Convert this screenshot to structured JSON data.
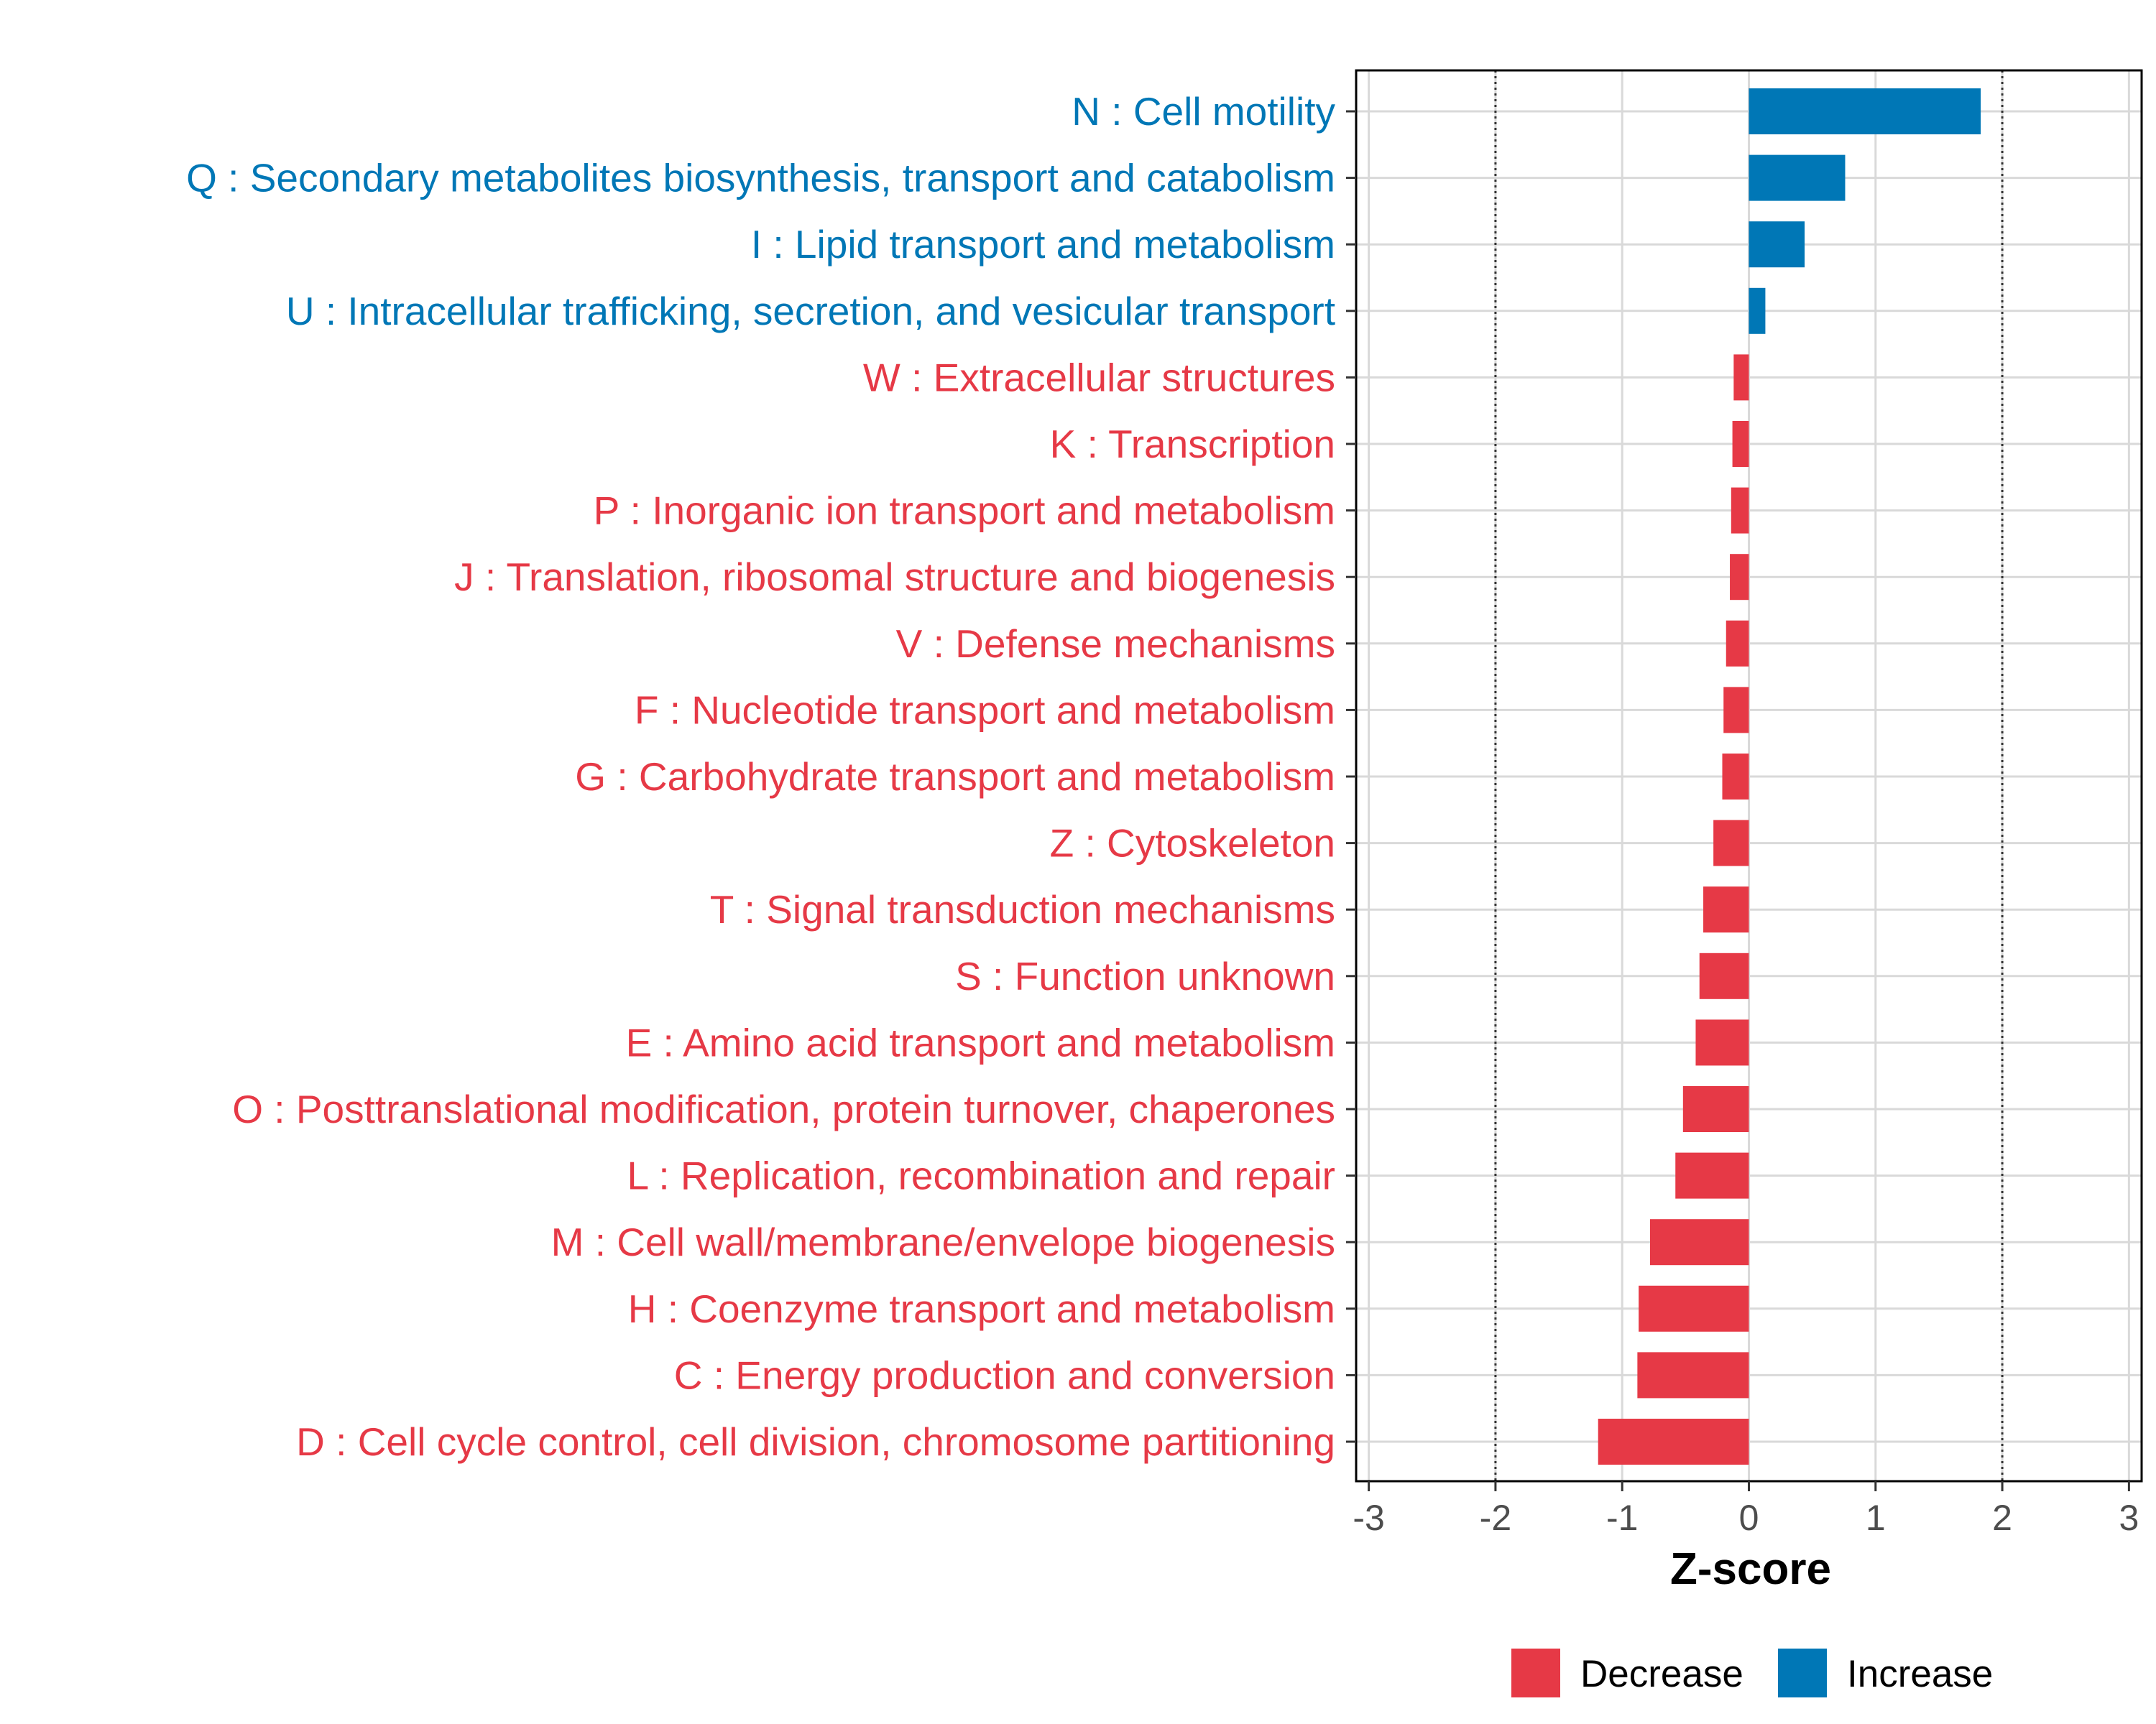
{
  "chart_data": {
    "type": "bar",
    "orientation": "horizontal",
    "xlabel": "Z-score",
    "xlim": [
      -3.1,
      3.1
    ],
    "xticks": [
      -3,
      -2,
      -1,
      0,
      1,
      2,
      3
    ],
    "reference_lines": [
      -2,
      2
    ],
    "grid": true,
    "legend_position": "bottom",
    "colors": {
      "Decrease": "#e63946",
      "Increase": "#0077b6"
    },
    "legend": [
      {
        "label": "Decrease",
        "color": "#e63946"
      },
      {
        "label": "Increase",
        "color": "#0077b6"
      }
    ],
    "categories": [
      "N : Cell motility",
      "Q : Secondary metabolites biosynthesis, transport and catabolism",
      "I : Lipid transport and metabolism",
      "U : Intracellular trafficking, secretion, and vesicular transport",
      "W : Extracellular structures",
      "K : Transcription",
      "P : Inorganic ion transport and metabolism",
      "J : Translation, ribosomal structure and biogenesis",
      "V : Defense mechanisms",
      "F : Nucleotide transport and metabolism",
      "G : Carbohydrate transport and metabolism",
      "Z : Cytoskeleton",
      "T : Signal transduction mechanisms",
      "S : Function unknown",
      "E : Amino acid transport and metabolism",
      "O : Posttranslational modification, protein turnover, chaperones",
      "L : Replication, recombination and repair",
      "M : Cell wall/membrane/envelope biogenesis",
      "H : Coenzyme transport and metabolism",
      "C : Energy production and conversion",
      "D : Cell cycle control, cell division, chromosome partitioning"
    ],
    "values": [
      1.83,
      0.76,
      0.44,
      0.13,
      -0.12,
      -0.13,
      -0.14,
      -0.15,
      -0.18,
      -0.2,
      -0.21,
      -0.28,
      -0.36,
      -0.39,
      -0.42,
      -0.52,
      -0.58,
      -0.78,
      -0.87,
      -0.88,
      -1.19
    ]
  }
}
